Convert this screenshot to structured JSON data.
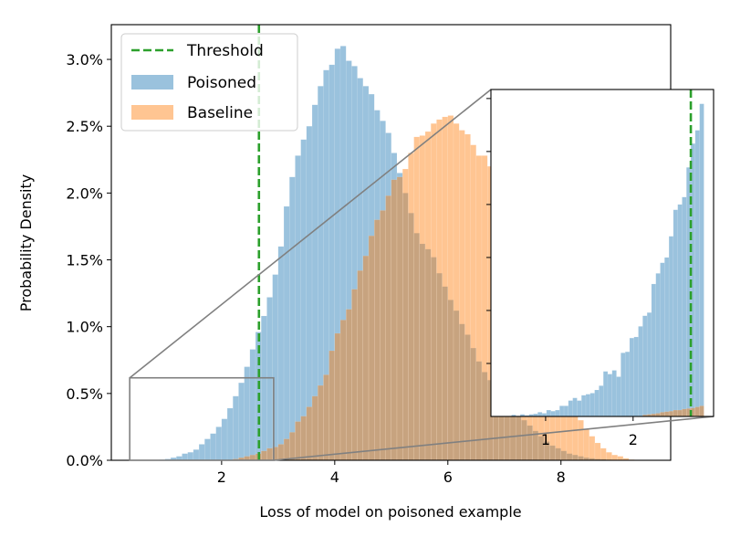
{
  "chart_data": {
    "type": "histogram",
    "xlabel": "Loss of model on poisoned example",
    "ylabel": "Probability Density",
    "xlim": [
      0.05,
      9.94
    ],
    "ylim": [
      0,
      3.26
    ],
    "xticks": [
      2,
      4,
      6,
      8
    ],
    "xtick_labels": [
      "2",
      "4",
      "6",
      "8"
    ],
    "yticks": [
      0,
      0.5,
      1.0,
      1.5,
      2.0,
      2.5,
      3.0
    ],
    "ytick_labels": [
      "0.0%",
      "0.5%",
      "1.0%",
      "1.5%",
      "2.0%",
      "2.5%",
      "3.0%"
    ],
    "grid": false,
    "legend_placement": "upper-left",
    "bin_start": 0.9,
    "bin_width": 0.1,
    "threshold": {
      "name": "Threshold",
      "x": 2.66,
      "color": "#2ca02c",
      "style": "dashed"
    },
    "series": [
      {
        "name": "Poisoned",
        "color": "#1f77b4",
        "alpha": 0.45,
        "values": [
          0.005,
          0.01,
          0.02,
          0.03,
          0.05,
          0.06,
          0.08,
          0.12,
          0.16,
          0.2,
          0.25,
          0.31,
          0.39,
          0.48,
          0.58,
          0.7,
          0.83,
          0.96,
          1.08,
          1.22,
          1.39,
          1.6,
          1.9,
          2.12,
          2.28,
          2.4,
          2.5,
          2.66,
          2.8,
          2.92,
          2.96,
          3.08,
          3.1,
          2.99,
          2.95,
          2.86,
          2.8,
          2.74,
          2.62,
          2.54,
          2.45,
          2.3,
          2.15,
          2.0,
          1.85,
          1.7,
          1.62,
          1.58,
          1.52,
          1.4,
          1.3,
          1.2,
          1.12,
          1.02,
          0.94,
          0.84,
          0.74,
          0.66,
          0.6,
          0.55,
          0.5,
          0.45,
          0.4,
          0.34,
          0.3,
          0.26,
          0.22,
          0.18,
          0.14,
          0.11,
          0.09,
          0.07,
          0.05,
          0.04,
          0.03,
          0.02,
          0.015,
          0.01,
          0.008,
          0.005,
          0.003,
          0.002,
          0.001,
          0
        ]
      },
      {
        "name": "Baseline",
        "color": "#ff7f0e",
        "alpha": 0.45,
        "values": [
          0,
          0,
          0,
          0,
          0,
          0,
          0,
          0,
          0,
          0,
          0,
          0,
          0,
          0.01,
          0.02,
          0.03,
          0.04,
          0.05,
          0.07,
          0.09,
          0.1,
          0.12,
          0.16,
          0.21,
          0.29,
          0.33,
          0.4,
          0.48,
          0.56,
          0.64,
          0.82,
          0.95,
          1.05,
          1.13,
          1.28,
          1.42,
          1.53,
          1.68,
          1.8,
          1.87,
          1.98,
          2.1,
          2.12,
          2.18,
          2.3,
          2.42,
          2.43,
          2.46,
          2.52,
          2.55,
          2.57,
          2.58,
          2.52,
          2.47,
          2.44,
          2.36,
          2.28,
          2.28,
          2.2,
          2.08,
          1.96,
          1.84,
          1.7,
          1.55,
          1.4,
          1.26,
          1.1,
          0.95,
          0.82,
          0.7,
          0.6,
          0.52,
          0.44,
          0.37,
          0.3,
          0.23,
          0.18,
          0.13,
          0.09,
          0.06,
          0.04,
          0.03,
          0.015,
          0.005
        ]
      }
    ],
    "inset": {
      "xlim": [
        0.375,
        2.92
      ],
      "ylim": [
        0,
        0.617
      ],
      "xticks": [
        1,
        2
      ],
      "xtick_labels": [
        "1",
        "2"
      ],
      "yticks": [
        0.1,
        0.2,
        0.3,
        0.4,
        0.5,
        0.6
      ],
      "bin_start": 0.61,
      "bin_width": 0.05,
      "series": [
        {
          "name": "Poisoned",
          "values": [
            0.003,
            0.001,
            0.004,
            0.002,
            0.004,
            0.005,
            0.008,
            0.006,
            0.012,
            0.01,
            0.012,
            0.02,
            0.02,
            0.03,
            0.035,
            0.03,
            0.04,
            0.042,
            0.044,
            0.05,
            0.058,
            0.085,
            0.08,
            0.087,
            0.075,
            0.12,
            0.122,
            0.148,
            0.15,
            0.17,
            0.19,
            0.196,
            0.25,
            0.27,
            0.29,
            0.3,
            0.34,
            0.39,
            0.4,
            0.414,
            0.47,
            0.515,
            0.54,
            0.59
          ]
        },
        {
          "name": "Baseline",
          "values": [
            0,
            0,
            0,
            0,
            0,
            0,
            0,
            0,
            0,
            0,
            0,
            0,
            0,
            0,
            0,
            0,
            0,
            0,
            0,
            0,
            0,
            0,
            0,
            0,
            0,
            0,
            0,
            0,
            0,
            0,
            0.003,
            0.004,
            0.005,
            0.006,
            0.008,
            0.009,
            0.01,
            0.012,
            0.012,
            0.014,
            0.015,
            0.016,
            0.018,
            0.02
          ]
        }
      ]
    }
  }
}
